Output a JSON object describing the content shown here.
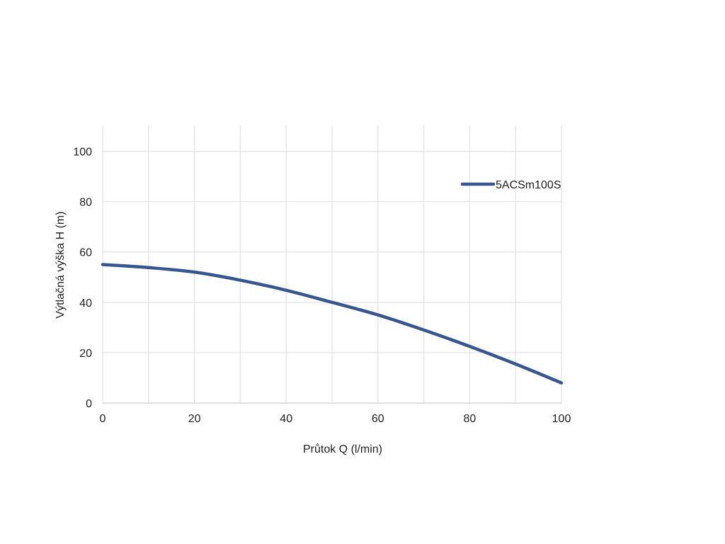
{
  "chart_data": {
    "type": "line",
    "xlabel": "Průtok Q (l/min)",
    "ylabel": "Výtlačná výška H (m)",
    "xlim": [
      0,
      100
    ],
    "ylim": [
      0,
      110
    ],
    "x_ticks": [
      0,
      20,
      40,
      60,
      80,
      100
    ],
    "y_ticks": [
      0,
      20,
      40,
      60,
      80,
      100
    ],
    "x_grid_step": 10,
    "y_grid_step": 20,
    "grid": true,
    "legend_position": "top-right",
    "series": [
      {
        "name": "5ACSm100S",
        "color": "#35568f",
        "x": [
          0,
          10,
          20,
          30,
          40,
          50,
          60,
          70,
          80,
          90,
          100
        ],
        "y": [
          55,
          53.8,
          52,
          48.8,
          44.8,
          40,
          35,
          29,
          22.5,
          15.5,
          8
        ]
      }
    ]
  }
}
